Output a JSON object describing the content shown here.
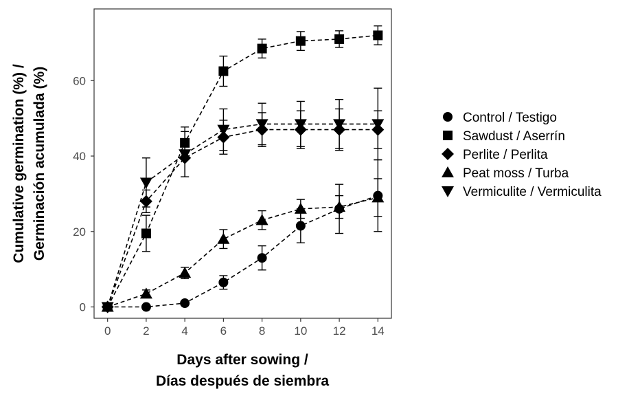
{
  "chart_data": {
    "type": "line",
    "xlabel": [
      "Days after sowing /",
      "Días después de siembra"
    ],
    "ylabel": [
      "Cumulative germination (%) /",
      "Germinación acumulada (%)"
    ],
    "x": [
      0,
      2,
      4,
      6,
      8,
      10,
      12,
      14
    ],
    "xticks": [
      "0",
      "2",
      "4",
      "6",
      "8",
      "10",
      "12",
      "14"
    ],
    "yticks": [
      "0",
      "20",
      "40",
      "60"
    ],
    "xlim": [
      -0.7,
      14.7
    ],
    "ylim": [
      -3,
      79
    ],
    "grid": false,
    "legend_position": "right",
    "series": [
      {
        "name": "Control / Testigo",
        "marker": "circle",
        "values": [
          0,
          0,
          1,
          6.5,
          13,
          21.5,
          26,
          29.5
        ],
        "errors": [
          0,
          0,
          0.5,
          1.8,
          3.2,
          4.5,
          6.5,
          9.5
        ]
      },
      {
        "name": "Sawdust / Aserrín",
        "marker": "square",
        "values": [
          0,
          19.5,
          43.5,
          62.5,
          68.5,
          70.5,
          71,
          72
        ],
        "errors": [
          0,
          4.8,
          4.2,
          4,
          2.5,
          2.5,
          2.2,
          2.5
        ]
      },
      {
        "name": "Perlite / Perlita",
        "marker": "diamond",
        "values": [
          0,
          28,
          39.5,
          45,
          47,
          47,
          47,
          47
        ],
        "errors": [
          0,
          3,
          5,
          4.5,
          4.5,
          5,
          5.5,
          5
        ]
      },
      {
        "name": "Peat moss / Turba",
        "marker": "triangle-up",
        "values": [
          0,
          3.5,
          9,
          18,
          23,
          26,
          26.5,
          29
        ],
        "errors": [
          0,
          1,
          1.5,
          2.5,
          2.5,
          2.5,
          3,
          5
        ]
      },
      {
        "name": "Vermiculite / Vermiculita",
        "marker": "triangle-down",
        "values": [
          0,
          33,
          40.5,
          47,
          48.5,
          48.5,
          48.5,
          48.5
        ],
        "errors": [
          0,
          6.5,
          6,
          5.5,
          5.5,
          6,
          6.5,
          9.5
        ]
      }
    ]
  }
}
